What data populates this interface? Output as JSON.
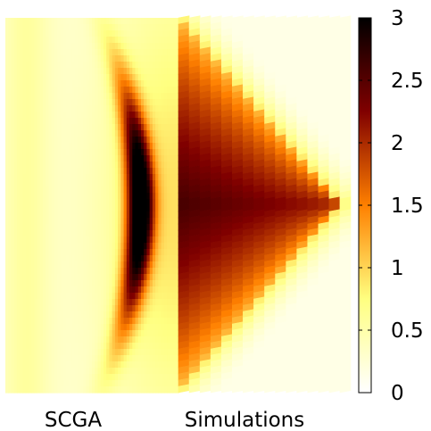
{
  "chart_data": {
    "type": "heatmap",
    "panels": [
      {
        "name": "SCGA"
      },
      {
        "name": "Simulations"
      }
    ],
    "colorbar": {
      "min": 0,
      "max": 3,
      "ticks": [
        "0",
        "0.5",
        "1",
        "1.5",
        "2",
        "2.5",
        "3"
      ],
      "colormap": "afmhot_r",
      "colors": [
        "#ffffff",
        "#ffff80",
        "#ff8000",
        "#800000",
        "#000000"
      ]
    },
    "fields": {
      "SCGA": {
        "grid": [
          60,
          60
        ],
        "peak_value": 3.0,
        "peak_x": 0.45,
        "peak_y": 0.5,
        "edge_value": 0.6
      },
      "Simulations": {
        "grid": [
          16,
          60
        ],
        "peak_value": 2.6,
        "peak_x": 0.45,
        "peak_y": 0.5,
        "mid_value": 1.8,
        "edge_value": 0.15,
        "triangle_apex_x": 0.95
      }
    }
  }
}
